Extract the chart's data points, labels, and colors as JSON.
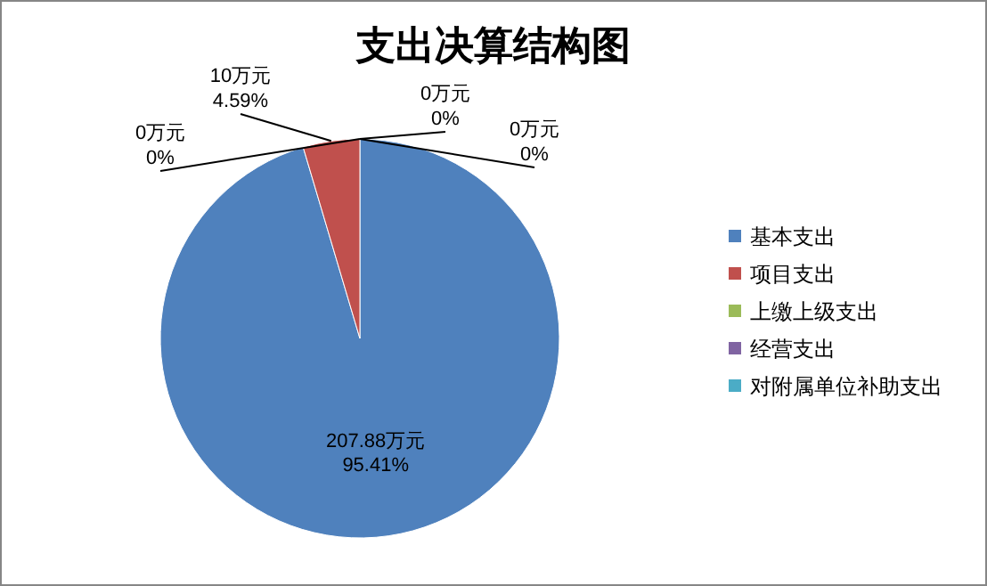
{
  "chart_data": {
    "type": "pie",
    "title": "支出决算结构图",
    "categories": [
      "基本支出",
      "项目支出",
      "上缴上级支出",
      "经营支出",
      "对附属单位补助支出"
    ],
    "values": [
      207.88,
      10,
      0,
      0,
      0
    ],
    "value_labels": [
      "207.88万元\n95.41%",
      "10万元\n4.59%",
      "0万元\n0%",
      "0万元\n0%",
      "0万元\n0%"
    ],
    "colors": [
      "#4f81bd",
      "#c0504d",
      "#9bbb59",
      "#8064a2",
      "#4bacc6"
    ],
    "legend": "right"
  }
}
